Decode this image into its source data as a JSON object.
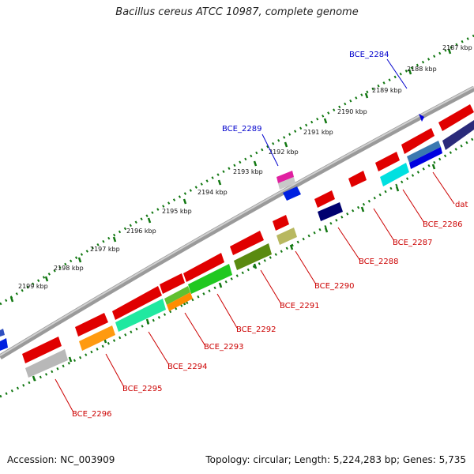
{
  "title": "Bacillus cereus ATCC 10987, complete genome",
  "footer": {
    "accession": "Accession: NC_003909",
    "summary": "Topology: circular; Length: 5,224,283 bp; Genes: 5,735"
  },
  "colors": {
    "label_red": "#cc0000",
    "label_blue": "#0000cc",
    "tick_green": "#117711",
    "backbone": "#8a8a8a"
  },
  "kbp_labels": [
    "2187 kbp",
    "2188 kbp",
    "2189 kbp",
    "2190 kbp",
    "2191 kbp",
    "2192 kbp",
    "2193 kbp",
    "2194 kbp",
    "2195 kbp",
    "2196 kbp",
    "2197 kbp",
    "2198 kbp",
    "2199 kbp"
  ],
  "gene_labels": [
    {
      "text": "BCE_2284",
      "color": "blue"
    },
    {
      "text": "BCE_2289",
      "color": "blue"
    },
    {
      "text": "dat",
      "color": "red"
    },
    {
      "text": "BCE_2286",
      "color": "red"
    },
    {
      "text": "BCE_2287",
      "color": "red"
    },
    {
      "text": "BCE_2288",
      "color": "red"
    },
    {
      "text": "BCE_2290",
      "color": "red"
    },
    {
      "text": "BCE_2291",
      "color": "red"
    },
    {
      "text": "BCE_2292",
      "color": "red"
    },
    {
      "text": "BCE_2293",
      "color": "red"
    },
    {
      "text": "BCE_2294",
      "color": "red"
    },
    {
      "text": "BCE_2295",
      "color": "red"
    },
    {
      "text": "BCE_2296",
      "color": "red"
    }
  ]
}
